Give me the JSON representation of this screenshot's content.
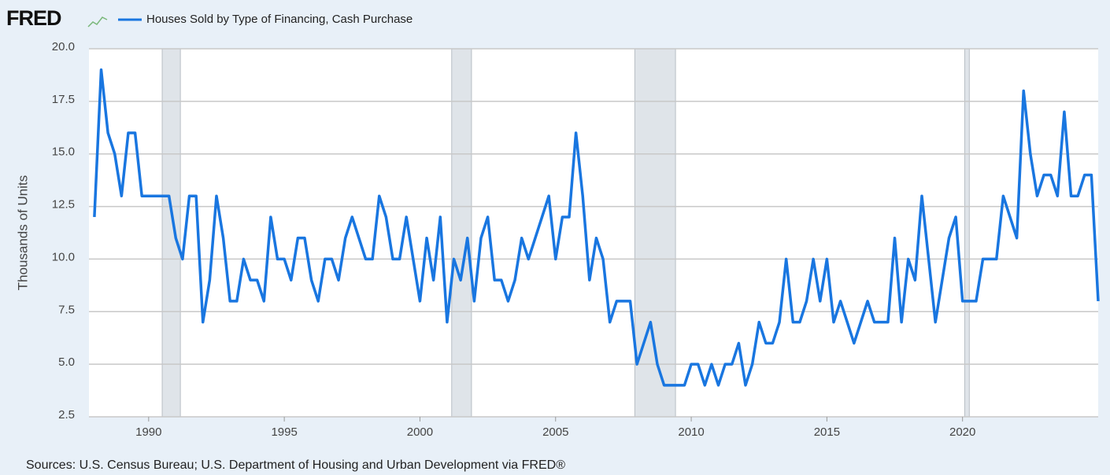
{
  "brand": "FRED",
  "chart_data": {
    "type": "line",
    "title": "Houses Sold by Type of Financing, Cash Purchase",
    "y_label": "Thousands of Units",
    "source": "Sources: U.S. Census Bureau; U.S. Department of Housing and Urban Development via FRED®",
    "xlim": [
      1987.8,
      2025
    ],
    "xticks": [
      1990,
      1995,
      2000,
      2005,
      2010,
      2015,
      2020
    ],
    "ylim": [
      2.5,
      20
    ],
    "yticks": [
      {
        "value": 2.5,
        "label": "2.5"
      },
      {
        "value": 5,
        "label": "5.0"
      },
      {
        "value": 7.5,
        "label": "7.5"
      },
      {
        "value": 10,
        "label": "10.0"
      },
      {
        "value": 12.5,
        "label": "12.5"
      },
      {
        "value": 15,
        "label": "15.0"
      },
      {
        "value": 17.5,
        "label": "17.5"
      },
      {
        "value": 20,
        "label": "20.0"
      }
    ],
    "grid": true,
    "shaded_periods": [
      [
        1990.5,
        1991.17
      ],
      [
        2001.17,
        2001.9
      ],
      [
        2007.92,
        2009.42
      ],
      [
        2020.08,
        2020.25
      ]
    ],
    "x": [
      1988,
      1988.25,
      1988.5,
      1988.75,
      1989,
      1989.25,
      1989.5,
      1989.75,
      1990,
      1990.25,
      1990.5,
      1990.75,
      1991,
      1991.25,
      1991.5,
      1991.75,
      1992,
      1992.25,
      1992.5,
      1992.75,
      1993,
      1993.25,
      1993.5,
      1993.75,
      1994,
      1994.25,
      1994.5,
      1994.75,
      1995,
      1995.25,
      1995.5,
      1995.75,
      1996,
      1996.25,
      1996.5,
      1996.75,
      1997,
      1997.25,
      1997.5,
      1997.75,
      1998,
      1998.25,
      1998.5,
      1998.75,
      1999,
      1999.25,
      1999.5,
      1999.75,
      2000,
      2000.25,
      2000.5,
      2000.75,
      2001,
      2001.25,
      2001.5,
      2001.75,
      2002,
      2002.25,
      2002.5,
      2002.75,
      2003,
      2003.25,
      2003.5,
      2003.75,
      2004,
      2004.25,
      2004.5,
      2004.75,
      2005,
      2005.25,
      2005.5,
      2005.75,
      2006,
      2006.25,
      2006.5,
      2006.75,
      2007,
      2007.25,
      2007.5,
      2007.75,
      2008,
      2008.25,
      2008.5,
      2008.75,
      2009,
      2009.25,
      2009.5,
      2009.75,
      2010,
      2010.25,
      2010.5,
      2010.75,
      2011,
      2011.25,
      2011.5,
      2011.75,
      2012,
      2012.25,
      2012.5,
      2012.75,
      2013,
      2013.25,
      2013.5,
      2013.75,
      2014,
      2014.25,
      2014.5,
      2014.75,
      2015,
      2015.25,
      2015.5,
      2015.75,
      2016,
      2016.25,
      2016.5,
      2016.75,
      2017,
      2017.25,
      2017.5,
      2017.75,
      2018,
      2018.25,
      2018.5,
      2018.75,
      2019,
      2019.25,
      2019.5,
      2019.75,
      2020,
      2020.25,
      2020.5,
      2020.75,
      2021,
      2021.25,
      2021.5,
      2021.75,
      2022,
      2022.25,
      2022.5,
      2022.75,
      2023,
      2023.25,
      2023.5,
      2023.75,
      2024,
      2024.25,
      2024.5,
      2024.75,
      2025
    ],
    "series": [
      {
        "name": "Houses Sold by Type of Financing, Cash Purchase",
        "color": "#1976e0",
        "values": [
          12,
          19,
          16,
          15,
          13,
          16,
          16,
          13,
          13,
          13,
          13,
          13,
          11,
          10,
          13,
          13,
          7,
          9,
          13,
          11,
          8,
          8,
          10,
          9,
          9,
          8,
          12,
          10,
          10,
          9,
          11,
          11,
          9,
          8,
          10,
          10,
          9,
          11,
          12,
          11,
          10,
          10,
          13,
          12,
          10,
          10,
          12,
          10,
          8,
          11,
          9,
          12,
          7,
          10,
          9,
          11,
          8,
          11,
          12,
          9,
          9,
          8,
          9,
          11,
          10,
          11,
          12,
          13,
          10,
          12,
          12,
          16,
          13,
          9,
          11,
          10,
          7,
          8,
          8,
          8,
          5,
          6,
          7,
          5,
          4,
          4,
          4,
          4,
          5,
          5,
          4,
          5,
          4,
          5,
          5,
          6,
          4,
          5,
          7,
          6,
          6,
          7,
          10,
          7,
          7,
          8,
          10,
          8,
          10,
          7,
          8,
          7,
          6,
          7,
          8,
          7,
          7,
          7,
          11,
          7,
          10,
          9,
          13,
          10,
          7,
          9,
          11,
          12,
          8,
          8,
          8,
          10,
          10,
          10,
          13,
          12,
          11,
          18,
          15,
          13,
          14,
          14,
          13,
          17,
          13,
          13,
          14,
          14,
          8
        ]
      }
    ]
  }
}
